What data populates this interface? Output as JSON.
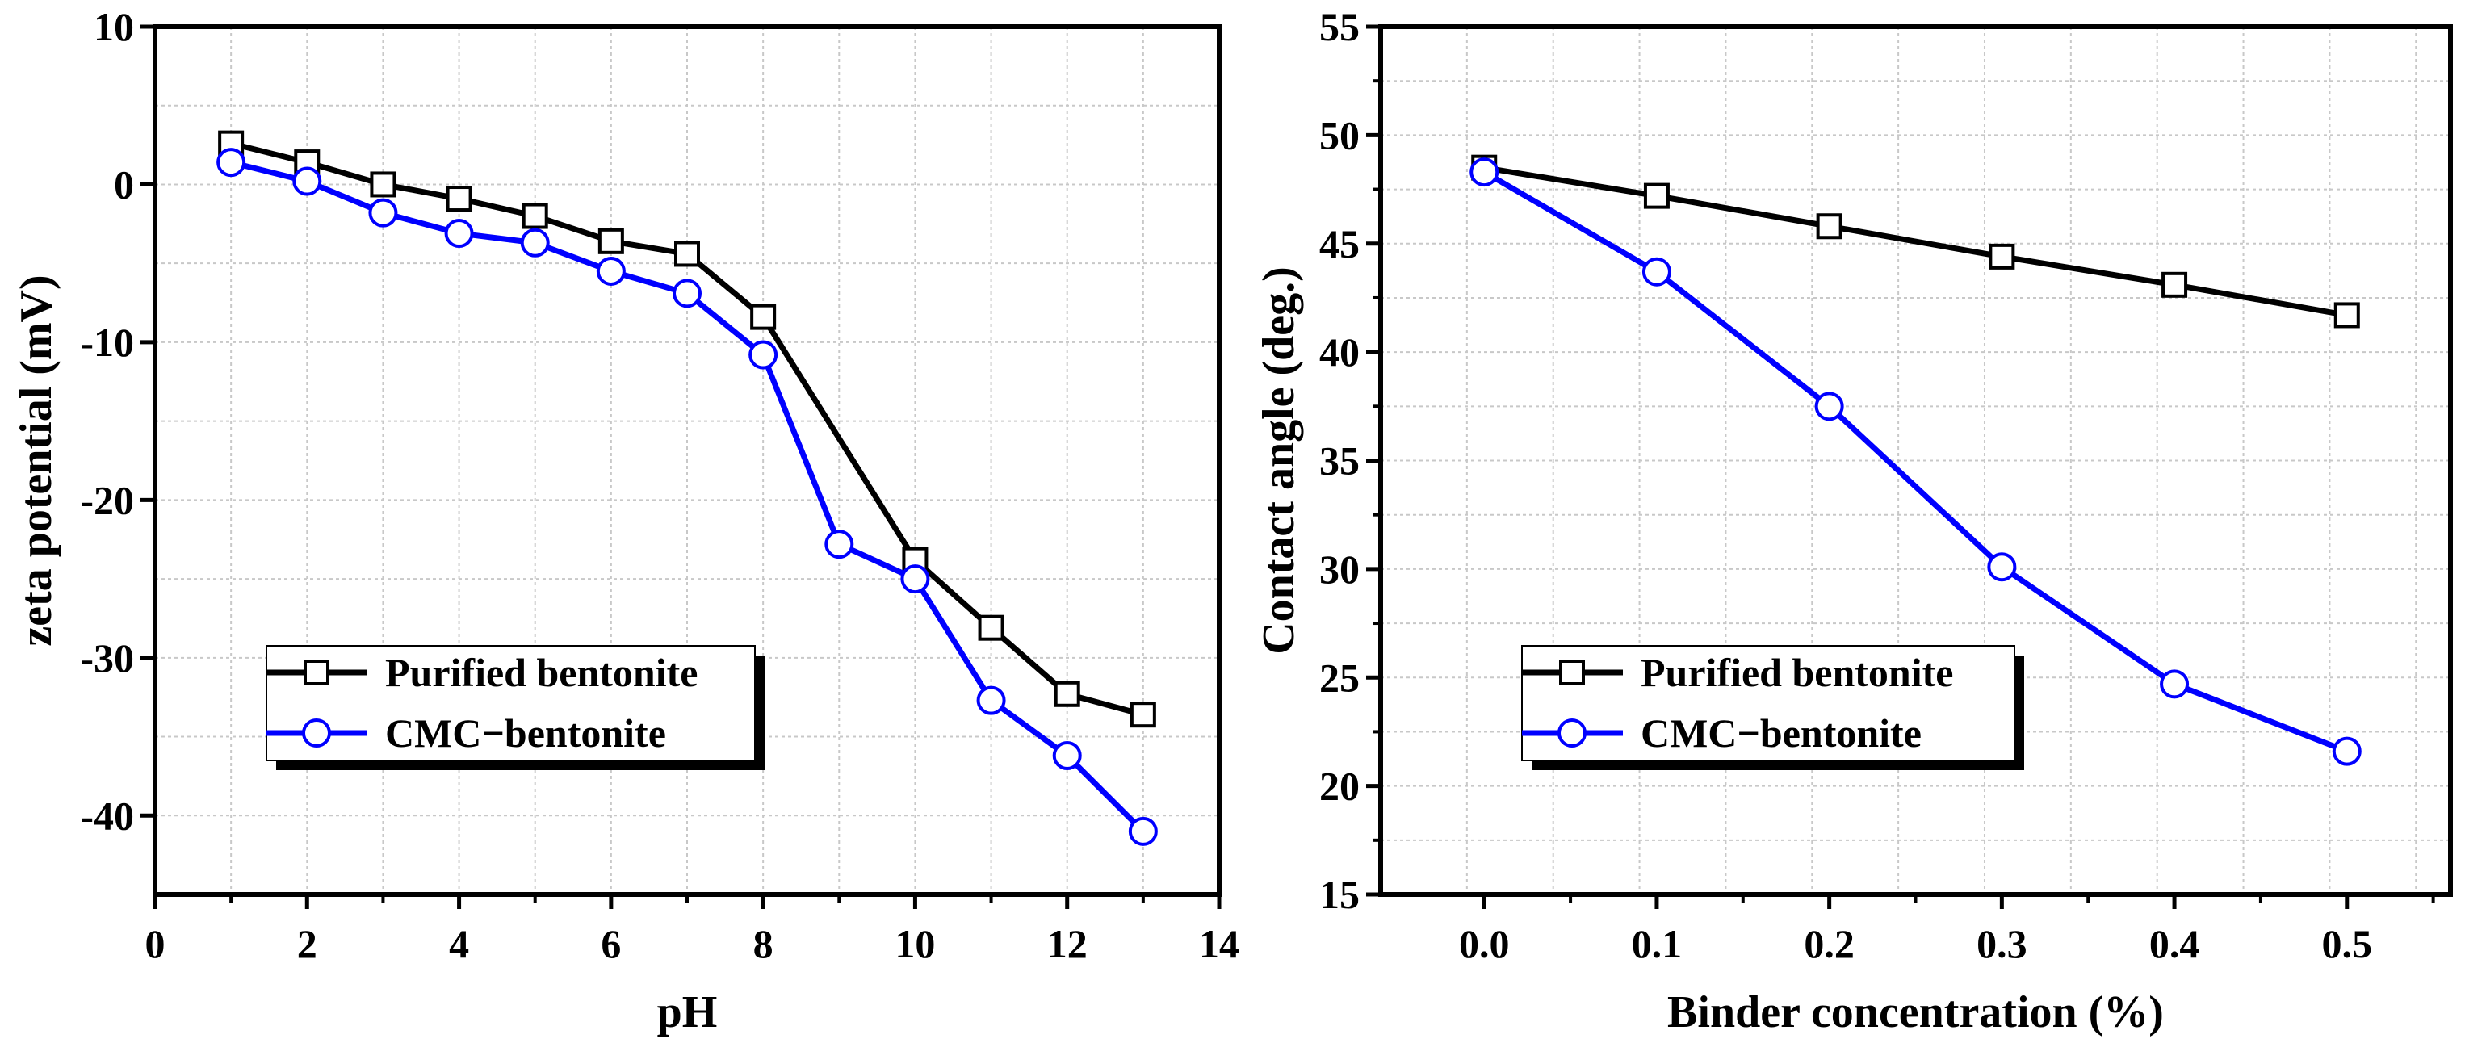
{
  "chart_data": [
    {
      "type": "line",
      "title": "",
      "xlabel": "pH",
      "ylabel": "zeta potential (mV)",
      "xlim": [
        0,
        14
      ],
      "ylim": [
        -45,
        10
      ],
      "xticks": [
        0,
        2,
        4,
        6,
        8,
        10,
        12,
        14
      ],
      "xtick_labels": [
        "0",
        "2",
        "4",
        "6",
        "8",
        "10",
        "12",
        "14"
      ],
      "yticks": [
        10,
        0,
        -10,
        -20,
        -30,
        -40
      ],
      "ytick_labels": [
        "10",
        "0",
        "-10",
        "-20",
        "-30",
        "-40"
      ],
      "grid": true,
      "legend_position": "lower-left",
      "series": [
        {
          "name": "Purified bentonite",
          "color": "#000000",
          "marker": "square",
          "x": [
            1,
            2,
            3,
            4,
            5,
            6,
            7,
            8,
            10,
            11,
            12,
            13
          ],
          "y": [
            2.6,
            1.4,
            0.0,
            -0.9,
            -2.0,
            -3.6,
            -4.4,
            -8.4,
            -23.8,
            -28.1,
            -32.3,
            -33.6
          ]
        },
        {
          "name": "CMC−bentonite",
          "color": "#0000ff",
          "marker": "circle",
          "x": [
            1,
            2,
            3,
            4,
            5,
            6,
            7,
            8,
            9,
            10,
            11,
            12,
            13
          ],
          "y": [
            1.4,
            0.2,
            -1.8,
            -3.1,
            -3.7,
            -5.5,
            -6.9,
            -10.8,
            -22.8,
            -25.0,
            -32.7,
            -36.2,
            -41.0
          ]
        }
      ]
    },
    {
      "type": "line",
      "title": "",
      "xlabel": "Binder concentration (%)",
      "ylabel": "Contact angle (deg.)",
      "xlim": [
        -0.06,
        0.56
      ],
      "ylim": [
        15,
        55
      ],
      "xticks": [
        0.0,
        0.1,
        0.2,
        0.3,
        0.4,
        0.5
      ],
      "xtick_labels": [
        "0.0",
        "0.1",
        "0.2",
        "0.3",
        "0.4",
        "0.5"
      ],
      "yticks": [
        15,
        20,
        25,
        30,
        35,
        40,
        45,
        50,
        55
      ],
      "ytick_labels": [
        "15",
        "20",
        "25",
        "30",
        "35",
        "40",
        "45",
        "50",
        "55"
      ],
      "grid": true,
      "legend_position": "lower-left",
      "series": [
        {
          "name": "Purified bentonite",
          "color": "#000000",
          "marker": "square",
          "x": [
            0.0,
            0.1,
            0.2,
            0.3,
            0.4,
            0.5
          ],
          "y": [
            48.5,
            47.2,
            45.8,
            44.4,
            43.1,
            41.7
          ]
        },
        {
          "name": "CMC−bentonite",
          "color": "#0000ff",
          "marker": "circle",
          "x": [
            0.0,
            0.1,
            0.2,
            0.3,
            0.4,
            0.5
          ],
          "y": [
            48.3,
            43.7,
            37.5,
            30.1,
            24.7,
            21.6
          ]
        }
      ]
    }
  ]
}
